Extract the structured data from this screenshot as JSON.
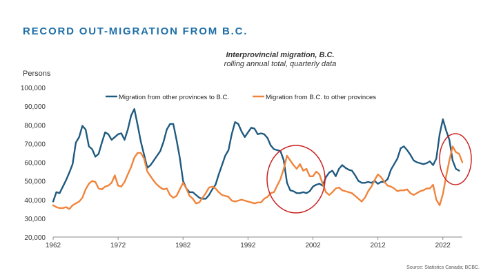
{
  "headline": "RECORD OUT-MIGRATION FROM B.C.",
  "source": "Source: Statistics Canada; BCBC.",
  "colors": {
    "headline": "#1e6fa8",
    "series_in": "#1f5a80",
    "series_out": "#f0843c",
    "highlight": "#cc2222",
    "axis": "#888888"
  },
  "chart_data": {
    "type": "line",
    "title": "Interprovincial migration, B.C.",
    "subtitle": "rolling annual total, quarterly data",
    "ylabel": "Persons",
    "xlabel": "",
    "xlim": [
      1962,
      2025
    ],
    "ylim": [
      20000,
      100000
    ],
    "xticks": [
      1962,
      1972,
      1982,
      1992,
      2002,
      2012,
      2022
    ],
    "xtick_labels": [
      "1962",
      "1972",
      "1982",
      "1992",
      "2002",
      "2012",
      "2022"
    ],
    "yticks": [
      20000,
      30000,
      40000,
      50000,
      60000,
      70000,
      80000,
      90000,
      100000
    ],
    "ytick_labels": [
      "20,000",
      "30,000",
      "40,000",
      "50,000",
      "60,000",
      "70,000",
      "80,000",
      "90,000",
      "100,000"
    ],
    "grid": false,
    "legend_position": "top",
    "series": [
      {
        "name": "Migration from other provinces to B.C.",
        "points": [
          [
            1962,
            39000
          ],
          [
            1962.5,
            44000
          ],
          [
            1963,
            43500
          ],
          [
            1963.5,
            47000
          ],
          [
            1964,
            50500
          ],
          [
            1964.5,
            54500
          ],
          [
            1965,
            59000
          ],
          [
            1965.5,
            70500
          ],
          [
            1966,
            73500
          ],
          [
            1966.5,
            79500
          ],
          [
            1967,
            77500
          ],
          [
            1967.5,
            68500
          ],
          [
            1968,
            67000
          ],
          [
            1968.5,
            63000
          ],
          [
            1969,
            64500
          ],
          [
            1969.5,
            70500
          ],
          [
            1970,
            76000
          ],
          [
            1970.5,
            75000
          ],
          [
            1971,
            72000
          ],
          [
            1971.5,
            73500
          ],
          [
            1972,
            75000
          ],
          [
            1972.5,
            75500
          ],
          [
            1973,
            72000
          ],
          [
            1973.5,
            77500
          ],
          [
            1974,
            85000
          ],
          [
            1974.5,
            88500
          ],
          [
            1975,
            80000
          ],
          [
            1975.5,
            71000
          ],
          [
            1976,
            64000
          ],
          [
            1976.5,
            57000
          ],
          [
            1977,
            58500
          ],
          [
            1977.5,
            61000
          ],
          [
            1978,
            63500
          ],
          [
            1978.5,
            66000
          ],
          [
            1979,
            71000
          ],
          [
            1979.5,
            77500
          ],
          [
            1980,
            80500
          ],
          [
            1980.5,
            80500
          ],
          [
            1981,
            72000
          ],
          [
            1981.5,
            62500
          ],
          [
            1982,
            50000
          ],
          [
            1982.5,
            46000
          ],
          [
            1983,
            44000
          ],
          [
            1983.5,
            44000
          ],
          [
            1984,
            42500
          ],
          [
            1984.5,
            41000
          ],
          [
            1985,
            40500
          ],
          [
            1985.5,
            40500
          ],
          [
            1986,
            42500
          ],
          [
            1986.5,
            45500
          ],
          [
            1987,
            48000
          ],
          [
            1987.5,
            53500
          ],
          [
            1988,
            58500
          ],
          [
            1988.5,
            63500
          ],
          [
            1989,
            66500
          ],
          [
            1989.5,
            75000
          ],
          [
            1990,
            81500
          ],
          [
            1990.5,
            80500
          ],
          [
            1991,
            76500
          ],
          [
            1991.5,
            73500
          ],
          [
            1992,
            76000
          ],
          [
            1992.5,
            78500
          ],
          [
            1993,
            78000
          ],
          [
            1993.5,
            75000
          ],
          [
            1994,
            75500
          ],
          [
            1994.5,
            75000
          ],
          [
            1995,
            73000
          ],
          [
            1995.5,
            69000
          ],
          [
            1996,
            67000
          ],
          [
            1996.5,
            66500
          ],
          [
            1997,
            66000
          ],
          [
            1997.5,
            61000
          ],
          [
            1998,
            49000
          ],
          [
            1998.5,
            45000
          ],
          [
            1999,
            44500
          ],
          [
            1999.5,
            43500
          ],
          [
            2000,
            43500
          ],
          [
            2000.5,
            44000
          ],
          [
            2001,
            43500
          ],
          [
            2001.5,
            44500
          ],
          [
            2002,
            47000
          ],
          [
            2002.5,
            48000
          ],
          [
            2003,
            48500
          ],
          [
            2003.5,
            47500
          ],
          [
            2004,
            52000
          ],
          [
            2004.5,
            54500
          ],
          [
            2005,
            55500
          ],
          [
            2005.5,
            52500
          ],
          [
            2006,
            56500
          ],
          [
            2006.5,
            58500
          ],
          [
            2007,
            57000
          ],
          [
            2007.5,
            56000
          ],
          [
            2008,
            55500
          ],
          [
            2008.5,
            53000
          ],
          [
            2009,
            50000
          ],
          [
            2009.5,
            49000
          ],
          [
            2010,
            49000
          ],
          [
            2010.5,
            49500
          ],
          [
            2011,
            49000
          ],
          [
            2011.5,
            50000
          ],
          [
            2012,
            48500
          ],
          [
            2012.5,
            49500
          ],
          [
            2013,
            49500
          ],
          [
            2013.5,
            51000
          ],
          [
            2014,
            56000
          ],
          [
            2014.5,
            59000
          ],
          [
            2015,
            62000
          ],
          [
            2015.5,
            67500
          ],
          [
            2016,
            68500
          ],
          [
            2016.5,
            66500
          ],
          [
            2017,
            64000
          ],
          [
            2017.5,
            61000
          ],
          [
            2018,
            60000
          ],
          [
            2018.5,
            59500
          ],
          [
            2019,
            59000
          ],
          [
            2019.5,
            59500
          ],
          [
            2020,
            60500
          ],
          [
            2020.5,
            58500
          ],
          [
            2021,
            62000
          ],
          [
            2021.5,
            75000
          ],
          [
            2022,
            83000
          ],
          [
            2022.5,
            77000
          ],
          [
            2023,
            72000
          ],
          [
            2023.5,
            61000
          ],
          [
            2024,
            56500
          ],
          [
            2024.5,
            55500
          ]
        ]
      },
      {
        "name": "Migration from B.C. to other provinces",
        "points": [
          [
            1962,
            37000
          ],
          [
            1962.5,
            36000
          ],
          [
            1963,
            35500
          ],
          [
            1963.5,
            35500
          ],
          [
            1964,
            36000
          ],
          [
            1964.5,
            35000
          ],
          [
            1965,
            37000
          ],
          [
            1965.5,
            38000
          ],
          [
            1966,
            39000
          ],
          [
            1966.5,
            41000
          ],
          [
            1967,
            45500
          ],
          [
            1967.5,
            48500
          ],
          [
            1968,
            50000
          ],
          [
            1968.5,
            49500
          ],
          [
            1969,
            46000
          ],
          [
            1969.5,
            45500
          ],
          [
            1970,
            47000
          ],
          [
            1970.5,
            47500
          ],
          [
            1971,
            49000
          ],
          [
            1971.5,
            53000
          ],
          [
            1972,
            47500
          ],
          [
            1972.5,
            47000
          ],
          [
            1973,
            49500
          ],
          [
            1973.5,
            53500
          ],
          [
            1974,
            57500
          ],
          [
            1974.5,
            62500
          ],
          [
            1975,
            65000
          ],
          [
            1975.5,
            65000
          ],
          [
            1976,
            62000
          ],
          [
            1976.5,
            55000
          ],
          [
            1977,
            52500
          ],
          [
            1977.5,
            50000
          ],
          [
            1978,
            48000
          ],
          [
            1978.5,
            46500
          ],
          [
            1979,
            45500
          ],
          [
            1979.5,
            46000
          ],
          [
            1980,
            42500
          ],
          [
            1980.5,
            41000
          ],
          [
            1981,
            42000
          ],
          [
            1981.5,
            45500
          ],
          [
            1982,
            49000
          ],
          [
            1982.5,
            46000
          ],
          [
            1983,
            42000
          ],
          [
            1983.5,
            40500
          ],
          [
            1984,
            38000
          ],
          [
            1984.5,
            38500
          ],
          [
            1985,
            41000
          ],
          [
            1985.5,
            43500
          ],
          [
            1986,
            46500
          ],
          [
            1986.5,
            47000
          ],
          [
            1987,
            46000
          ],
          [
            1987.5,
            44000
          ],
          [
            1988,
            42500
          ],
          [
            1988.5,
            42000
          ],
          [
            1989,
            41500
          ],
          [
            1989.5,
            39500
          ],
          [
            1990,
            39000
          ],
          [
            1990.5,
            39500
          ],
          [
            1991,
            40000
          ],
          [
            1991.5,
            39500
          ],
          [
            1992,
            39000
          ],
          [
            1992.5,
            38500
          ],
          [
            1993,
            38000
          ],
          [
            1993.5,
            38500
          ],
          [
            1994,
            38500
          ],
          [
            1994.5,
            40500
          ],
          [
            1995,
            41500
          ],
          [
            1995.5,
            43500
          ],
          [
            1996,
            44000
          ],
          [
            1996.5,
            47500
          ],
          [
            1997,
            51000
          ],
          [
            1997.5,
            56500
          ],
          [
            1998,
            63500
          ],
          [
            1998.5,
            61000
          ],
          [
            1999,
            58500
          ],
          [
            1999.5,
            56500
          ],
          [
            2000,
            59000
          ],
          [
            2000.5,
            55500
          ],
          [
            2001,
            56500
          ],
          [
            2001.5,
            52500
          ],
          [
            2002,
            52500
          ],
          [
            2002.5,
            55000
          ],
          [
            2003,
            53500
          ],
          [
            2003.5,
            48500
          ],
          [
            2004,
            44000
          ],
          [
            2004.5,
            42500
          ],
          [
            2005,
            44000
          ],
          [
            2005.5,
            46000
          ],
          [
            2006,
            46500
          ],
          [
            2006.5,
            45000
          ],
          [
            2007,
            44500
          ],
          [
            2007.5,
            44000
          ],
          [
            2008,
            43500
          ],
          [
            2008.5,
            42000
          ],
          [
            2009,
            40500
          ],
          [
            2009.5,
            39000
          ],
          [
            2010,
            41000
          ],
          [
            2010.5,
            44500
          ],
          [
            2011,
            47000
          ],
          [
            2011.5,
            50500
          ],
          [
            2012,
            53500
          ],
          [
            2012.5,
            52000
          ],
          [
            2013,
            49500
          ],
          [
            2013.5,
            47500
          ],
          [
            2014,
            47000
          ],
          [
            2014.5,
            46000
          ],
          [
            2015,
            44500
          ],
          [
            2015.5,
            45000
          ],
          [
            2016,
            45000
          ],
          [
            2016.5,
            45500
          ],
          [
            2017,
            43500
          ],
          [
            2017.5,
            42500
          ],
          [
            2018,
            43500
          ],
          [
            2018.5,
            44500
          ],
          [
            2019,
            45000
          ],
          [
            2019.5,
            46000
          ],
          [
            2020,
            46000
          ],
          [
            2020.5,
            48000
          ],
          [
            2021,
            40000
          ],
          [
            2021.5,
            37000
          ],
          [
            2022,
            43000
          ],
          [
            2022.5,
            52500
          ],
          [
            2023,
            61000
          ],
          [
            2023.5,
            68500
          ],
          [
            2024,
            65500
          ],
          [
            2024.5,
            64500
          ],
          [
            2025,
            60000
          ]
        ]
      }
    ]
  }
}
